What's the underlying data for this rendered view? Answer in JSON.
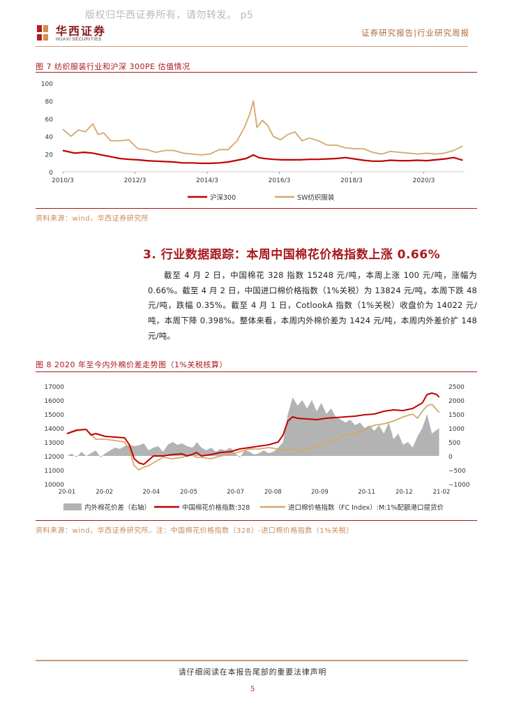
{
  "watermark": "版权归华西证券所有，请勿转发。 p5",
  "header": {
    "brand_cn": "华西证券",
    "brand_en": "HUAXI SECURITIES",
    "report_type": "证券研究报告|行业研究周报"
  },
  "figure7": {
    "title": "图 7 纺织服装行业和沪深 300PE 估值情况",
    "source": "资料来源：wind，华西证券研究所",
    "chart_data": {
      "type": "line",
      "ylim": [
        0,
        100
      ],
      "yticks": [
        "0",
        "20",
        "40",
        "60",
        "80",
        "100"
      ],
      "xticks": [
        "2010/3",
        "2012/3",
        "2014/3",
        "2016/3",
        "2018/3",
        "2020/3"
      ],
      "colors": {
        "hs300": "#c00000",
        "textile": "#d4a86a"
      },
      "series": [
        {
          "name": "沪深300",
          "x": [
            2010.17,
            2010.5,
            2010.75,
            2011.0,
            2011.25,
            2011.5,
            2011.75,
            2012.0,
            2012.25,
            2012.5,
            2012.75,
            2013.0,
            2013.25,
            2013.5,
            2013.75,
            2014.0,
            2014.25,
            2014.5,
            2014.75,
            2015.0,
            2015.25,
            2015.45,
            2015.6,
            2015.75,
            2016.0,
            2016.25,
            2016.5,
            2016.75,
            2017.0,
            2017.25,
            2017.5,
            2017.75,
            2018.0,
            2018.25,
            2018.5,
            2018.75,
            2019.0,
            2019.25,
            2019.5,
            2019.75,
            2020.0,
            2020.25,
            2020.5,
            2020.75,
            2021.0,
            2021.25
          ],
          "values": [
            24,
            21,
            22,
            21,
            19,
            17,
            15,
            14,
            13.5,
            12.5,
            12,
            11.5,
            11,
            10,
            10,
            9.5,
            9.5,
            10,
            11,
            13,
            15,
            19,
            16,
            15,
            14,
            13.5,
            13.5,
            13.5,
            14,
            14,
            14.5,
            15,
            16,
            14.5,
            13,
            12,
            12,
            13,
            12.5,
            12.5,
            13,
            12.5,
            13.5,
            14.5,
            16,
            13
          ]
        },
        {
          "name": "SW纺织服装",
          "x": [
            2010.17,
            2010.4,
            2010.6,
            2010.8,
            2011.0,
            2011.15,
            2011.3,
            2011.5,
            2011.75,
            2012.0,
            2012.25,
            2012.5,
            2012.75,
            2013.0,
            2013.25,
            2013.5,
            2013.75,
            2014.0,
            2014.25,
            2014.5,
            2014.75,
            2015.0,
            2015.2,
            2015.35,
            2015.45,
            2015.55,
            2015.7,
            2015.85,
            2016.0,
            2016.2,
            2016.4,
            2016.6,
            2016.8,
            2017.0,
            2017.25,
            2017.5,
            2017.75,
            2018.0,
            2018.25,
            2018.5,
            2018.75,
            2019.0,
            2019.25,
            2019.5,
            2019.75,
            2020.0,
            2020.25,
            2020.5,
            2020.75,
            2021.0,
            2021.25
          ],
          "values": [
            48,
            40,
            47,
            45,
            54,
            42,
            44,
            35,
            35,
            36,
            26,
            25,
            22,
            24,
            24,
            21,
            20,
            19,
            20,
            25,
            25,
            35,
            50,
            65,
            80,
            50,
            58,
            52,
            40,
            36,
            42,
            45,
            35,
            38,
            35,
            30,
            30,
            27,
            26,
            26,
            22,
            20,
            23,
            22,
            21,
            20,
            21,
            20,
            21,
            24,
            29
          ]
        }
      ]
    }
  },
  "section3": {
    "heading": "3. 行业数据跟踪：本周中国棉花价格指数上涨 0.66%",
    "paragraph": "截至 4 月 2 日，中国棉花 328 指数 15248 元/吨，本周上涨 100 元/吨，涨幅为 0.66%。截至 4 月 2 日，中国进口棉价格指数（1%关税）为 13824 元/吨，本周下跌 48 元/吨，跌幅 0.35%。截至 4 月 1 日，CotlookA 指数（1%关税）收盘价为 14022 元/吨，本周下降 0.398%。整体来看，本周内外棉价差为 1424 元/吨，本周内外差价扩 148 元/吨。"
  },
  "figure8": {
    "title": "图 8 2020 年至今内外棉价差走势图（1%关税核算）",
    "source": "资料来源：wind，华西证券研究所。注：中国棉花价格指数（328）-进口棉价格指数（1%关税）",
    "chart_data": {
      "type": "line",
      "ylim_left": [
        10000,
        17000
      ],
      "ylim_right": [
        -1000,
        2500
      ],
      "yticks_left": [
        "17000",
        "16000",
        "15000",
        "14000",
        "13000",
        "12000",
        "11000",
        "10000"
      ],
      "yticks_right": [
        "2500",
        "2000",
        "1500",
        "1000",
        "500",
        "0",
        "−500",
        "−1000"
      ],
      "xticks": [
        "20-01",
        "20-02",
        "20-04",
        "20-05",
        "20-07",
        "20-08",
        "20-09",
        "20-11",
        "20-12",
        "21-02"
      ],
      "colors": {
        "diff": "#b3b3b3",
        "china": "#c00000",
        "import": "#d4a86a"
      },
      "series": [
        {
          "name": "内外棉花价差（右轴）",
          "axis": "right",
          "x": [
            0,
            4,
            8,
            12,
            16,
            20,
            24,
            28,
            32,
            36,
            40,
            44,
            48,
            52,
            56,
            60,
            64,
            68,
            72,
            76,
            80,
            84,
            88,
            92,
            96,
            100,
            104,
            106,
            108,
            112,
            116,
            120,
            124,
            128,
            132,
            136,
            140,
            144,
            148,
            152,
            156,
            160,
            164,
            168,
            172,
            176,
            180,
            184,
            188,
            192,
            196,
            200,
            204,
            208,
            212,
            216,
            220,
            224,
            228,
            232,
            236,
            240,
            244,
            248,
            252,
            256,
            260,
            264,
            268,
            272,
            276,
            280,
            284,
            288,
            292,
            296,
            300,
            304,
            310
          ],
          "values": [
            0,
            80,
            -50,
            150,
            0,
            100,
            200,
            -50,
            100,
            200,
            300,
            250,
            350,
            400,
            350,
            380,
            450,
            200,
            300,
            350,
            150,
            400,
            500,
            400,
            450,
            350,
            300,
            350,
            500,
            300,
            200,
            300,
            150,
            250,
            200,
            300,
            100,
            -50,
            200,
            150,
            50,
            100,
            200,
            100,
            150,
            300,
            500,
            1500,
            2100,
            1800,
            2000,
            1700,
            2000,
            1600,
            1900,
            1500,
            1700,
            1400,
            1300,
            1200,
            1300,
            1100,
            1200,
            1000,
            1100,
            900,
            1100,
            800,
            1200,
            600,
            800,
            400,
            500,
            300,
            700,
            1000,
            1500,
            800,
            1000
          ]
        },
        {
          "name": "中国棉花价格指数:328",
          "axis": "left",
          "x": [
            0,
            8,
            16,
            20,
            24,
            32,
            40,
            48,
            52,
            56,
            60,
            64,
            68,
            72,
            80,
            88,
            96,
            100,
            104,
            108,
            112,
            120,
            128,
            136,
            144,
            152,
            160,
            168,
            176,
            180,
            184,
            188,
            192,
            200,
            208,
            216,
            224,
            232,
            240,
            248,
            256,
            264,
            272,
            280,
            288,
            296,
            300,
            304,
            308,
            310
          ],
          "values": [
            13600,
            13850,
            13900,
            13500,
            13600,
            13400,
            13350,
            13300,
            12800,
            11800,
            11500,
            11400,
            11700,
            12000,
            12000,
            12100,
            12150,
            12000,
            12100,
            12250,
            12000,
            12100,
            12250,
            12300,
            12500,
            12600,
            12700,
            12800,
            13000,
            13500,
            14500,
            14800,
            14700,
            14650,
            14600,
            14700,
            14750,
            14800,
            14850,
            14950,
            15000,
            15200,
            15300,
            15250,
            15400,
            15800,
            16400,
            16500,
            16400,
            16200
          ]
        },
        {
          "name": "进口棉价格指数（FC Index）:M:1%配额港口提货价",
          "axis": "left",
          "x": [
            0,
            8,
            16,
            24,
            32,
            40,
            48,
            52,
            56,
            60,
            64,
            68,
            72,
            80,
            88,
            96,
            104,
            108,
            112,
            120,
            128,
            136,
            144,
            152,
            160,
            168,
            176,
            180,
            184,
            188,
            192,
            200,
            208,
            216,
            224,
            232,
            240,
            248,
            256,
            264,
            272,
            280,
            288,
            292,
            296,
            300,
            304,
            308,
            310
          ],
          "values": [
            13600,
            13800,
            13900,
            13200,
            13200,
            13100,
            13000,
            12400,
            11300,
            11000,
            11200,
            11300,
            11500,
            11900,
            11800,
            11900,
            12100,
            11900,
            11900,
            11800,
            12000,
            12100,
            12300,
            12500,
            12500,
            12600,
            12500,
            12400,
            12500,
            12500,
            12300,
            12500,
            12700,
            13000,
            13200,
            13500,
            13600,
            13900,
            14200,
            14300,
            14500,
            14800,
            15000,
            14700,
            15200,
            15600,
            15700,
            15300,
            15100
          ]
        }
      ]
    }
  },
  "footer": {
    "note": "请仔细阅读在本报告尾部的重要法律声明",
    "page_number": "5"
  }
}
